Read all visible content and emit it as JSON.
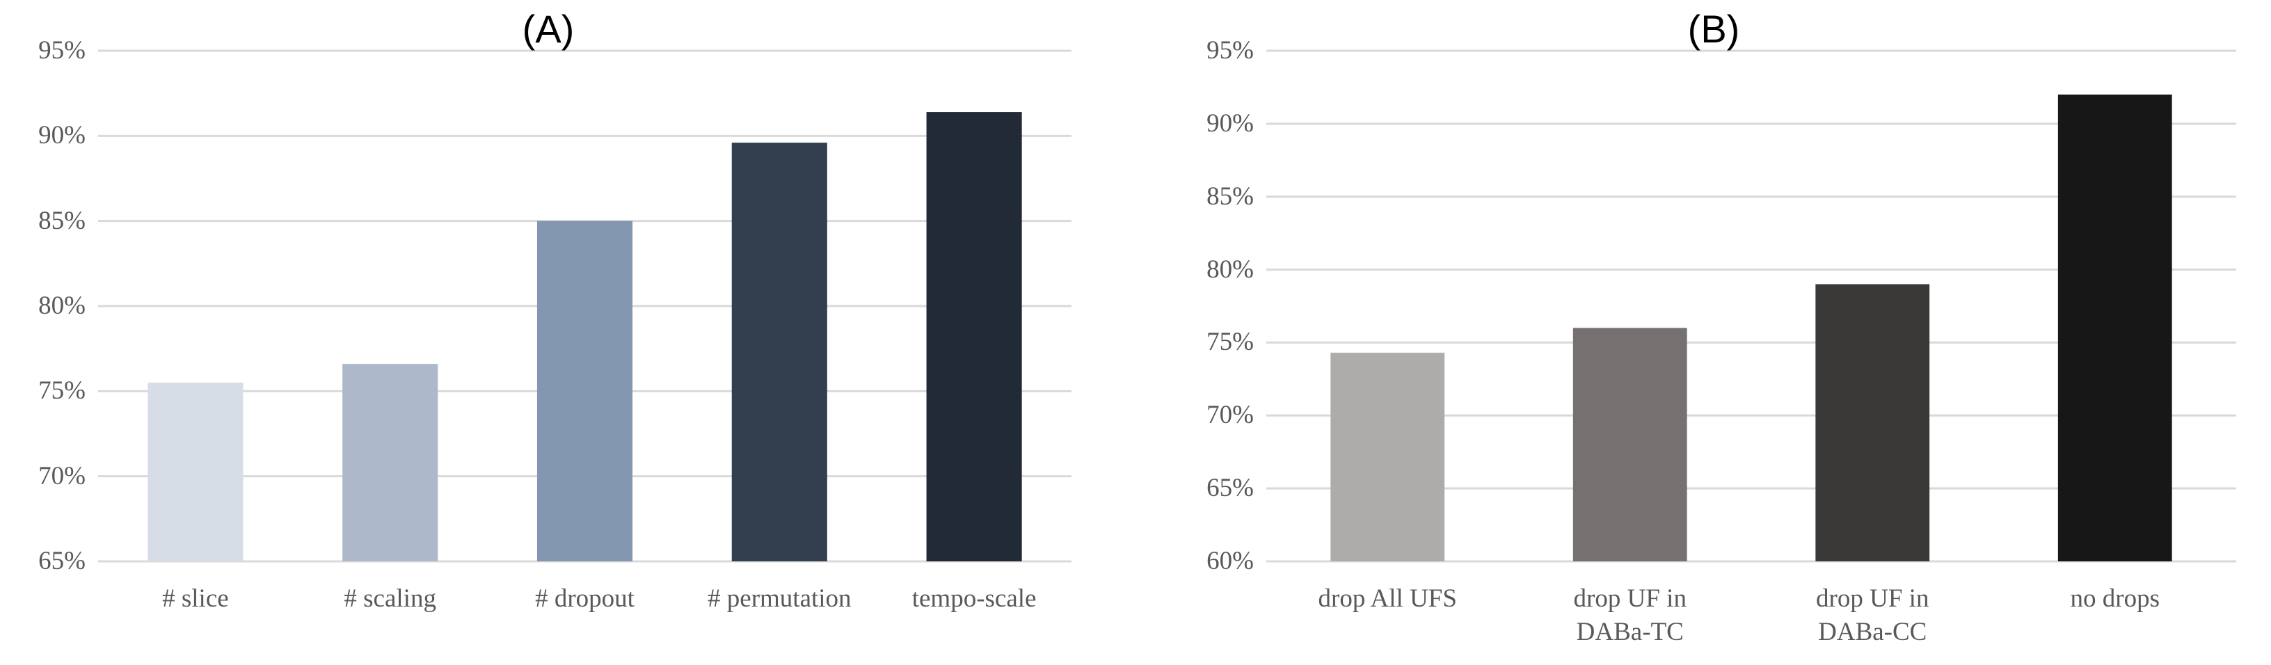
{
  "chart_data": [
    {
      "type": "bar",
      "title": "(A)",
      "categories": [
        "# slice",
        "# scaling",
        "# dropout",
        "# permutation",
        "tempo-scale"
      ],
      "values": [
        75.5,
        76.6,
        85,
        89.6,
        91.4
      ],
      "colors": [
        "#d6dde6",
        "#adb9cb",
        "#8497b0",
        "#323f4f",
        "#222a35"
      ],
      "ylim": [
        65,
        95
      ],
      "yticks": [
        {
          "value": 65,
          "label": "65%"
        },
        {
          "value": 70,
          "label": "70%"
        },
        {
          "value": 75,
          "label": "75%"
        },
        {
          "value": 80,
          "label": "80%"
        },
        {
          "value": 85,
          "label": "85%"
        },
        {
          "value": 90,
          "label": "90%"
        },
        {
          "value": 95,
          "label": "95%"
        }
      ],
      "grid": true
    },
    {
      "type": "bar",
      "title": "(B)",
      "categories": [
        "drop All UFS",
        "drop UF in DABa-TC",
        "drop UF in DABa-CC",
        "no drops"
      ],
      "values": [
        74.3,
        76,
        79,
        92
      ],
      "colors": [
        "#aeabab",
        "#767171",
        "#3b3838",
        "#181717"
      ],
      "ylim": [
        60,
        95
      ],
      "yticks": [
        {
          "value": 60,
          "label": "60%"
        },
        {
          "value": 65,
          "label": "65%"
        },
        {
          "value": 70,
          "label": "70%"
        },
        {
          "value": 75,
          "label": "75%"
        },
        {
          "value": 80,
          "label": "80%"
        },
        {
          "value": 85,
          "label": "85%"
        },
        {
          "value": 90,
          "label": "90%"
        },
        {
          "value": 95,
          "label": "95%"
        }
      ],
      "grid": true
    }
  ]
}
